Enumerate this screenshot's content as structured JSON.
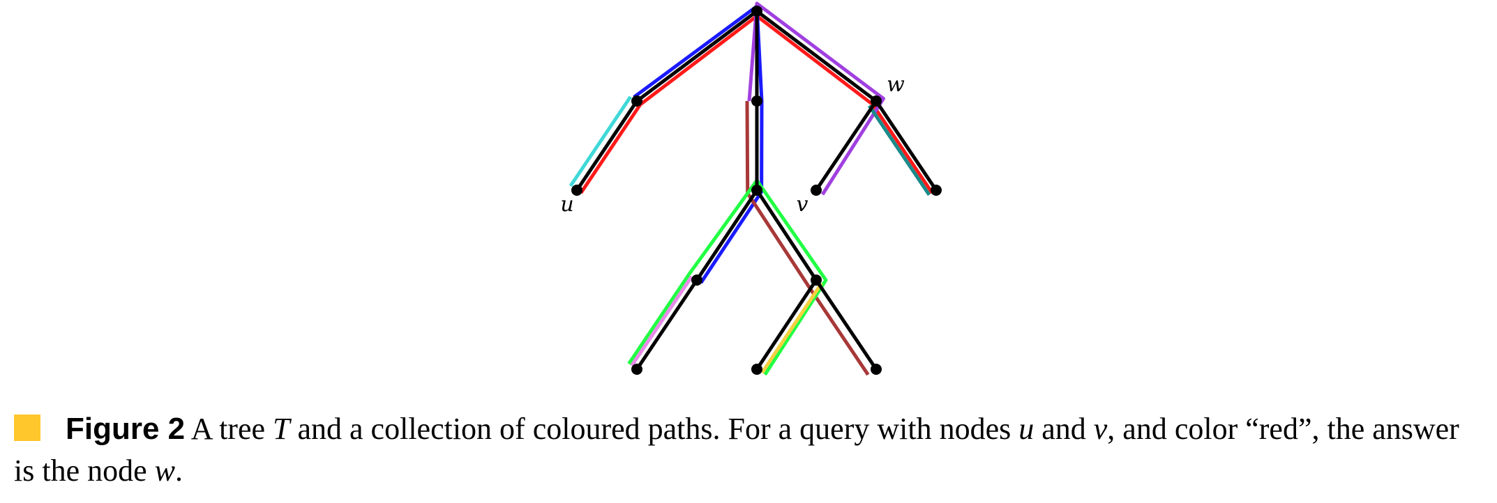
{
  "diagram": {
    "nodes": [
      {
        "id": "r"
      },
      {
        "id": "a"
      },
      {
        "id": "u",
        "label": "u"
      },
      {
        "id": "b"
      },
      {
        "id": "w",
        "label": "w"
      },
      {
        "id": "v",
        "label": "v"
      },
      {
        "id": "x"
      },
      {
        "id": "c"
      },
      {
        "id": "d"
      },
      {
        "id": "e"
      },
      {
        "id": "f"
      },
      {
        "id": "g"
      },
      {
        "id": "h"
      }
    ],
    "edges": [
      [
        "r",
        "a"
      ],
      [
        "a",
        "u"
      ],
      [
        "r",
        "b"
      ],
      [
        "b",
        "c"
      ],
      [
        "r",
        "w"
      ],
      [
        "w",
        "v"
      ],
      [
        "w",
        "x"
      ],
      [
        "c",
        "d"
      ],
      [
        "c",
        "e"
      ],
      [
        "d",
        "f"
      ],
      [
        "e",
        "g"
      ],
      [
        "e",
        "h"
      ]
    ],
    "paths": [
      {
        "color": "#ff1a1a",
        "nodes": [
          "u",
          "a",
          "r",
          "w",
          "x"
        ]
      },
      {
        "color": "#1a1aff",
        "nodes": [
          "a",
          "r",
          "b",
          "c",
          "d"
        ]
      },
      {
        "color": "#40d8d8",
        "nodes": [
          "a",
          "u"
        ]
      },
      {
        "color": "#a040e0",
        "nodes": [
          "b",
          "r",
          "w",
          "v"
        ]
      },
      {
        "color": "#a83838",
        "nodes": [
          "b",
          "c",
          "e",
          "h"
        ]
      },
      {
        "color": "#22ff44",
        "nodes": [
          "f",
          "d",
          "c",
          "e",
          "g"
        ]
      },
      {
        "color": "#e88ae8",
        "nodes": [
          "d",
          "f"
        ]
      },
      {
        "color": "#f5d040",
        "nodes": [
          "e",
          "g"
        ]
      },
      {
        "color": "#1a8a8a",
        "nodes": [
          "w",
          "x"
        ]
      }
    ]
  },
  "caption": {
    "marker_color": "#ffc72c",
    "label": "Figure 2",
    "parts": [
      " A tree ",
      {
        "math": "T"
      },
      " and a collection of coloured paths. For a query with nodes ",
      {
        "math": "u"
      },
      " and ",
      {
        "math": "v"
      },
      ", and color “red”, the answer is the node ",
      {
        "math": "w"
      },
      "."
    ]
  }
}
